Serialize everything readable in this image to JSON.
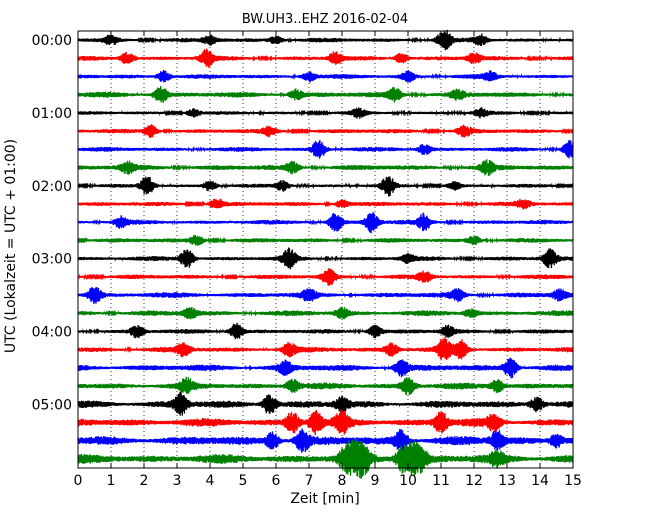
{
  "chart_data": {
    "type": "line",
    "title": "BW.UH3..EHZ 2016-02-04",
    "xlabel": "Zeit  [min]",
    "ylabel": "UTC (Lokalzeit = UTC + 01:00)",
    "xlim": [
      0,
      15
    ],
    "x_ticks": [
      0,
      1,
      2,
      3,
      4,
      5,
      6,
      7,
      8,
      9,
      10,
      11,
      12,
      13,
      14,
      15
    ],
    "x_tick_labels": [
      "0",
      "1",
      "2",
      "3",
      "4",
      "5",
      "6",
      "7",
      "8",
      "9",
      "10",
      "11",
      "12",
      "13",
      "14",
      "15"
    ],
    "y_tick_labels": [
      "00:00",
      "01:00",
      "02:00",
      "03:00",
      "04:00",
      "05:00"
    ],
    "y_ticks_at_trace_index": [
      0,
      4,
      8,
      12,
      16,
      20
    ],
    "grid": "vertical dotted lines at each minute",
    "trace_interval_minutes": 15,
    "trace_colors": [
      "#000000",
      "#ff0000",
      "#0000ff",
      "#008000"
    ],
    "series": [
      {
        "start": "00:00",
        "color": "#000000",
        "base_amplitude": 0.25,
        "events": [
          [
            1.0,
            0.4
          ],
          [
            4.0,
            0.4
          ],
          [
            6.0,
            0.4
          ],
          [
            11.1,
            1.0
          ],
          [
            12.2,
            0.5
          ]
        ]
      },
      {
        "start": "00:15",
        "color": "#ff0000",
        "base_amplitude": 0.25,
        "events": [
          [
            1.5,
            0.6
          ],
          [
            3.9,
            0.8
          ],
          [
            7.8,
            0.6
          ],
          [
            9.8,
            0.5
          ],
          [
            12.0,
            0.5
          ]
        ]
      },
      {
        "start": "00:30",
        "color": "#0000ff",
        "base_amplitude": 0.25,
        "events": [
          [
            2.6,
            0.6
          ],
          [
            7.0,
            0.5
          ],
          [
            10.0,
            0.5
          ],
          [
            12.5,
            0.4
          ]
        ]
      },
      {
        "start": "00:45",
        "color": "#008000",
        "base_amplitude": 0.3,
        "events": [
          [
            2.5,
            0.8
          ],
          [
            6.6,
            0.5
          ],
          [
            9.6,
            0.6
          ],
          [
            11.5,
            0.4
          ]
        ]
      },
      {
        "start": "01:00",
        "color": "#000000",
        "base_amplitude": 0.2,
        "events": [
          [
            3.5,
            0.4
          ],
          [
            8.5,
            0.4
          ],
          [
            12.2,
            0.4
          ]
        ]
      },
      {
        "start": "01:15",
        "color": "#ff0000",
        "base_amplitude": 0.25,
        "events": [
          [
            2.2,
            0.6
          ],
          [
            5.8,
            0.4
          ],
          [
            11.7,
            0.5
          ]
        ]
      },
      {
        "start": "01:30",
        "color": "#0000ff",
        "base_amplitude": 0.25,
        "events": [
          [
            7.3,
            0.9
          ],
          [
            10.5,
            0.5
          ],
          [
            14.9,
            0.8
          ]
        ]
      },
      {
        "start": "01:45",
        "color": "#008000",
        "base_amplitude": 0.3,
        "events": [
          [
            1.5,
            0.5
          ],
          [
            6.5,
            0.5
          ],
          [
            12.4,
            0.6
          ]
        ]
      },
      {
        "start": "02:00",
        "color": "#000000",
        "base_amplitude": 0.2,
        "events": [
          [
            2.1,
            1.0
          ],
          [
            4.0,
            0.5
          ],
          [
            6.2,
            0.5
          ],
          [
            9.4,
            0.9
          ],
          [
            11.4,
            0.4
          ]
        ]
      },
      {
        "start": "02:15",
        "color": "#ff0000",
        "base_amplitude": 0.25,
        "events": [
          [
            4.2,
            0.5
          ],
          [
            8.0,
            0.4
          ],
          [
            13.5,
            0.4
          ]
        ]
      },
      {
        "start": "02:30",
        "color": "#0000ff",
        "base_amplitude": 0.25,
        "events": [
          [
            1.3,
            0.5
          ],
          [
            7.8,
            0.9
          ],
          [
            8.9,
            1.0
          ],
          [
            10.5,
            0.8
          ]
        ]
      },
      {
        "start": "02:45",
        "color": "#008000",
        "base_amplitude": 0.25,
        "events": [
          [
            3.6,
            0.5
          ],
          [
            12.0,
            0.4
          ]
        ]
      },
      {
        "start": "03:00",
        "color": "#000000",
        "base_amplitude": 0.25,
        "events": [
          [
            3.3,
            1.0
          ],
          [
            6.4,
            0.9
          ],
          [
            10.0,
            0.4
          ],
          [
            14.3,
            0.9
          ]
        ]
      },
      {
        "start": "03:15",
        "color": "#ff0000",
        "base_amplitude": 0.25,
        "events": [
          [
            7.6,
            0.8
          ],
          [
            10.5,
            0.5
          ]
        ]
      },
      {
        "start": "03:30",
        "color": "#0000ff",
        "base_amplitude": 0.3,
        "events": [
          [
            0.5,
            0.8
          ],
          [
            7.0,
            0.5
          ],
          [
            11.5,
            0.5
          ],
          [
            14.6,
            0.5
          ]
        ]
      },
      {
        "start": "03:45",
        "color": "#008000",
        "base_amplitude": 0.3,
        "events": [
          [
            3.4,
            0.5
          ],
          [
            8.0,
            0.5
          ],
          [
            11.9,
            0.4
          ]
        ]
      },
      {
        "start": "04:00",
        "color": "#000000",
        "base_amplitude": 0.25,
        "events": [
          [
            1.8,
            0.6
          ],
          [
            4.8,
            0.8
          ],
          [
            9.0,
            0.6
          ],
          [
            11.2,
            0.5
          ]
        ]
      },
      {
        "start": "04:15",
        "color": "#ff0000",
        "base_amplitude": 0.3,
        "events": [
          [
            3.2,
            0.6
          ],
          [
            6.4,
            0.6
          ],
          [
            9.5,
            0.6
          ],
          [
            11.1,
            1.0
          ],
          [
            11.6,
            0.9
          ]
        ]
      },
      {
        "start": "04:30",
        "color": "#0000ff",
        "base_amplitude": 0.35,
        "events": [
          [
            6.3,
            0.6
          ],
          [
            9.8,
            0.8
          ],
          [
            13.1,
            1.0
          ]
        ]
      },
      {
        "start": "04:45",
        "color": "#008000",
        "base_amplitude": 0.35,
        "events": [
          [
            3.3,
            0.6
          ],
          [
            6.5,
            0.6
          ],
          [
            10.0,
            0.8
          ],
          [
            12.7,
            0.6
          ]
        ]
      },
      {
        "start": "05:00",
        "color": "#000000",
        "base_amplitude": 0.4,
        "events": [
          [
            3.1,
            1.0
          ],
          [
            5.8,
            1.0
          ],
          [
            8.0,
            0.6
          ],
          [
            13.9,
            0.7
          ]
        ]
      },
      {
        "start": "05:15",
        "color": "#ff0000",
        "base_amplitude": 0.45,
        "events": [
          [
            6.5,
            1.0
          ],
          [
            7.2,
            1.0
          ],
          [
            8.0,
            0.9
          ],
          [
            11.0,
            1.0
          ],
          [
            12.6,
            0.7
          ]
        ]
      },
      {
        "start": "05:30",
        "color": "#0000ff",
        "base_amplitude": 0.5,
        "events": [
          [
            5.9,
            0.8
          ],
          [
            6.8,
            1.0
          ],
          [
            9.8,
            1.0
          ],
          [
            12.7,
            0.9
          ],
          [
            14.5,
            0.6
          ]
        ]
      },
      {
        "start": "05:45",
        "color": "#008000",
        "base_amplitude": 0.5,
        "events": [
          [
            8.2,
            1.4
          ],
          [
            8.6,
            1.4
          ],
          [
            9.9,
            1.4
          ],
          [
            10.3,
            1.4
          ],
          [
            12.7,
            0.6
          ]
        ]
      }
    ]
  }
}
